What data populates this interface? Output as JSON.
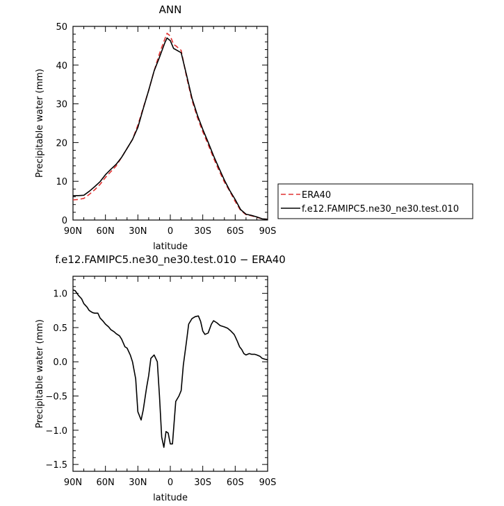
{
  "chart_data": [
    {
      "type": "line",
      "title": "ANN",
      "xlabel": "latitude",
      "ylabel": "Precipitable water (mm)",
      "xlim": [
        90,
        -90
      ],
      "ylim": [
        0,
        50
      ],
      "x_ticks": [
        90,
        60,
        30,
        0,
        -30,
        -60,
        -90
      ],
      "x_tick_labels": [
        "90N",
        "60N",
        "30N",
        "0",
        "30S",
        "60S",
        "90S"
      ],
      "y_ticks": [
        0,
        10,
        20,
        30,
        40,
        50
      ],
      "y_tick_labels": [
        "0",
        "10",
        "20",
        "30",
        "40",
        "50"
      ],
      "legend_position": "right, outside plot",
      "series": [
        {
          "name": "ERA40",
          "color": "#e03030",
          "dash": "dashed",
          "x": [
            90,
            85,
            80,
            75,
            70,
            65,
            60,
            55,
            50,
            45,
            40,
            35,
            30,
            25,
            20,
            15,
            10,
            5,
            3,
            0,
            -3,
            -5,
            -10,
            -15,
            -20,
            -25,
            -30,
            -35,
            -40,
            -45,
            -50,
            -55,
            -60,
            -65,
            -70,
            -75,
            -80,
            -85,
            -90
          ],
          "y": [
            5.2,
            5.3,
            5.6,
            6.6,
            7.8,
            9.2,
            11.0,
            12.5,
            14.0,
            16.2,
            18.5,
            20.8,
            24.5,
            29.0,
            33.5,
            38.5,
            43.0,
            46.8,
            48.2,
            47.5,
            45.3,
            45.0,
            43.8,
            37.0,
            31.0,
            26.5,
            22.8,
            19.5,
            16.0,
            12.8,
            9.8,
            7.4,
            4.8,
            2.5,
            1.4,
            1.1,
            0.7,
            0.3,
            0.2
          ]
        },
        {
          "name": "f.e12.FAMIPC5.ne30_ne30.test.010",
          "color": "#000000",
          "dash": "solid",
          "x": [
            90,
            85,
            80,
            75,
            70,
            65,
            60,
            55,
            50,
            45,
            40,
            35,
            30,
            25,
            20,
            15,
            10,
            5,
            3,
            0,
            -3,
            -5,
            -10,
            -15,
            -20,
            -25,
            -30,
            -35,
            -40,
            -45,
            -50,
            -55,
            -60,
            -65,
            -70,
            -75,
            -80,
            -85,
            -90
          ],
          "y": [
            6.3,
            6.3,
            6.4,
            7.4,
            8.6,
            9.9,
            11.7,
            13.1,
            14.4,
            16.2,
            18.5,
            20.8,
            23.9,
            28.8,
            33.5,
            38.5,
            42.0,
            45.8,
            47.0,
            46.3,
            44.3,
            44.0,
            43.2,
            37.5,
            31.5,
            27.1,
            23.4,
            20.1,
            16.6,
            13.4,
            10.3,
            7.6,
            5.3,
            2.7,
            1.5,
            1.2,
            0.8,
            0.3,
            0.2
          ]
        }
      ]
    },
    {
      "type": "line",
      "title": "f.e12.FAMIPC5.ne30_ne30.test.010 − ERA40",
      "xlabel": "latitude",
      "ylabel": "Precipitable water (mm)",
      "xlim": [
        90,
        -90
      ],
      "ylim": [
        -1.6,
        1.25
      ],
      "x_ticks": [
        90,
        60,
        30,
        0,
        -30,
        -60,
        -90
      ],
      "x_tick_labels": [
        "90N",
        "60N",
        "30N",
        "0",
        "30S",
        "60S",
        "90S"
      ],
      "y_ticks": [
        -1.5,
        -1.0,
        -0.5,
        0.0,
        0.5,
        1.0
      ],
      "y_tick_labels": [
        "−1.5",
        "−1.0",
        "−0.5",
        "0.0",
        "0.5",
        "1.0"
      ],
      "series": [
        {
          "name": "",
          "color": "#000000",
          "dash": "solid",
          "x": [
            90,
            88,
            85,
            82,
            80,
            77,
            75,
            72,
            70,
            67,
            65,
            62,
            60,
            57,
            55,
            52,
            50,
            47,
            45,
            42,
            40,
            37,
            35,
            32,
            30,
            27,
            25,
            22,
            20,
            18,
            15,
            12,
            10,
            8,
            6,
            4,
            2,
            0,
            -2,
            -5,
            -8,
            -10,
            -12,
            -15,
            -17,
            -20,
            -23,
            -26,
            -28,
            -30,
            -32,
            -35,
            -38,
            -40,
            -43,
            -46,
            -50,
            -53,
            -56,
            -59,
            -60,
            -62,
            -64,
            -66,
            -68,
            -70,
            -73,
            -75,
            -78,
            -80,
            -83,
            -85,
            -87,
            -90
          ],
          "y": [
            1.05,
            1.04,
            0.97,
            0.92,
            0.85,
            0.8,
            0.75,
            0.72,
            0.71,
            0.71,
            0.64,
            0.59,
            0.55,
            0.51,
            0.47,
            0.44,
            0.41,
            0.38,
            0.33,
            0.22,
            0.2,
            0.1,
            0.0,
            -0.25,
            -0.73,
            -0.85,
            -0.7,
            -0.38,
            -0.2,
            0.05,
            0.1,
            0.0,
            -0.5,
            -1.1,
            -1.25,
            -1.02,
            -1.04,
            -1.2,
            -1.2,
            -0.58,
            -0.5,
            -0.42,
            -0.05,
            0.3,
            0.55,
            0.63,
            0.66,
            0.67,
            0.59,
            0.45,
            0.4,
            0.42,
            0.55,
            0.6,
            0.57,
            0.53,
            0.51,
            0.49,
            0.45,
            0.4,
            0.37,
            0.3,
            0.22,
            0.18,
            0.12,
            0.1,
            0.12,
            0.11,
            0.11,
            0.1,
            0.08,
            0.05,
            0.04,
            0.03
          ]
        }
      ]
    }
  ]
}
